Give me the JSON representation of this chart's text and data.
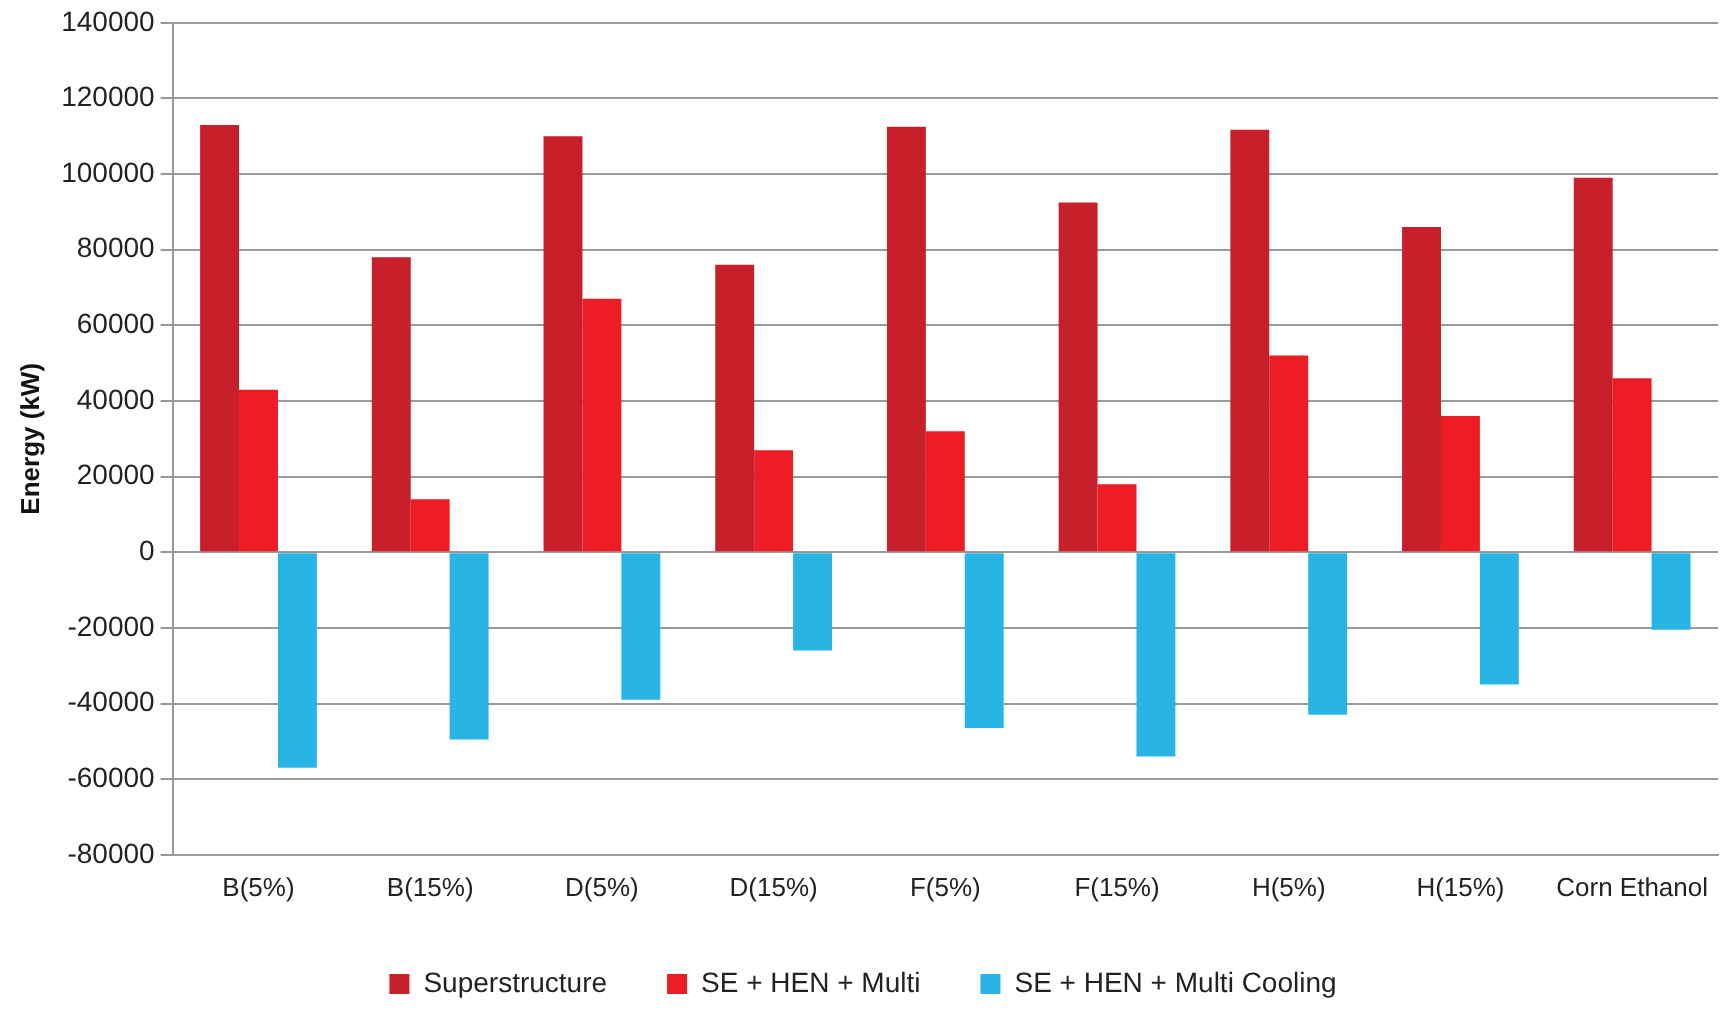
{
  "chart_data": {
    "type": "bar",
    "ylabel": "Energy (kW)",
    "categories": [
      "B(5%)",
      "B(15%)",
      "D(5%)",
      "D(15%)",
      "F(5%)",
      "F(15%)",
      "H(5%)",
      "H(15%)",
      "Corn Ethanol"
    ],
    "series": [
      {
        "name": "Superstructure",
        "color": "#c8202a",
        "values": [
          113000,
          78000,
          110000,
          76000,
          112500,
          92500,
          111700,
          86000,
          99000
        ]
      },
      {
        "name": "SE + HEN + Multi",
        "color": "#ee1c25",
        "values": [
          43000,
          14000,
          67000,
          27000,
          32000,
          18000,
          52000,
          36000,
          46000
        ]
      },
      {
        "name": "SE + HEN + Multi Cooling",
        "color": "#29b4e6",
        "values": [
          -57000,
          -49500,
          -39000,
          -26000,
          -46500,
          -54000,
          -43000,
          -35000,
          -20500
        ]
      }
    ],
    "ylim": [
      -80000,
      140000
    ],
    "yticks": [
      -80000,
      -60000,
      -40000,
      -20000,
      0,
      20000,
      40000,
      60000,
      80000,
      100000,
      120000,
      140000
    ],
    "grid": "y",
    "legend": "bottom"
  }
}
